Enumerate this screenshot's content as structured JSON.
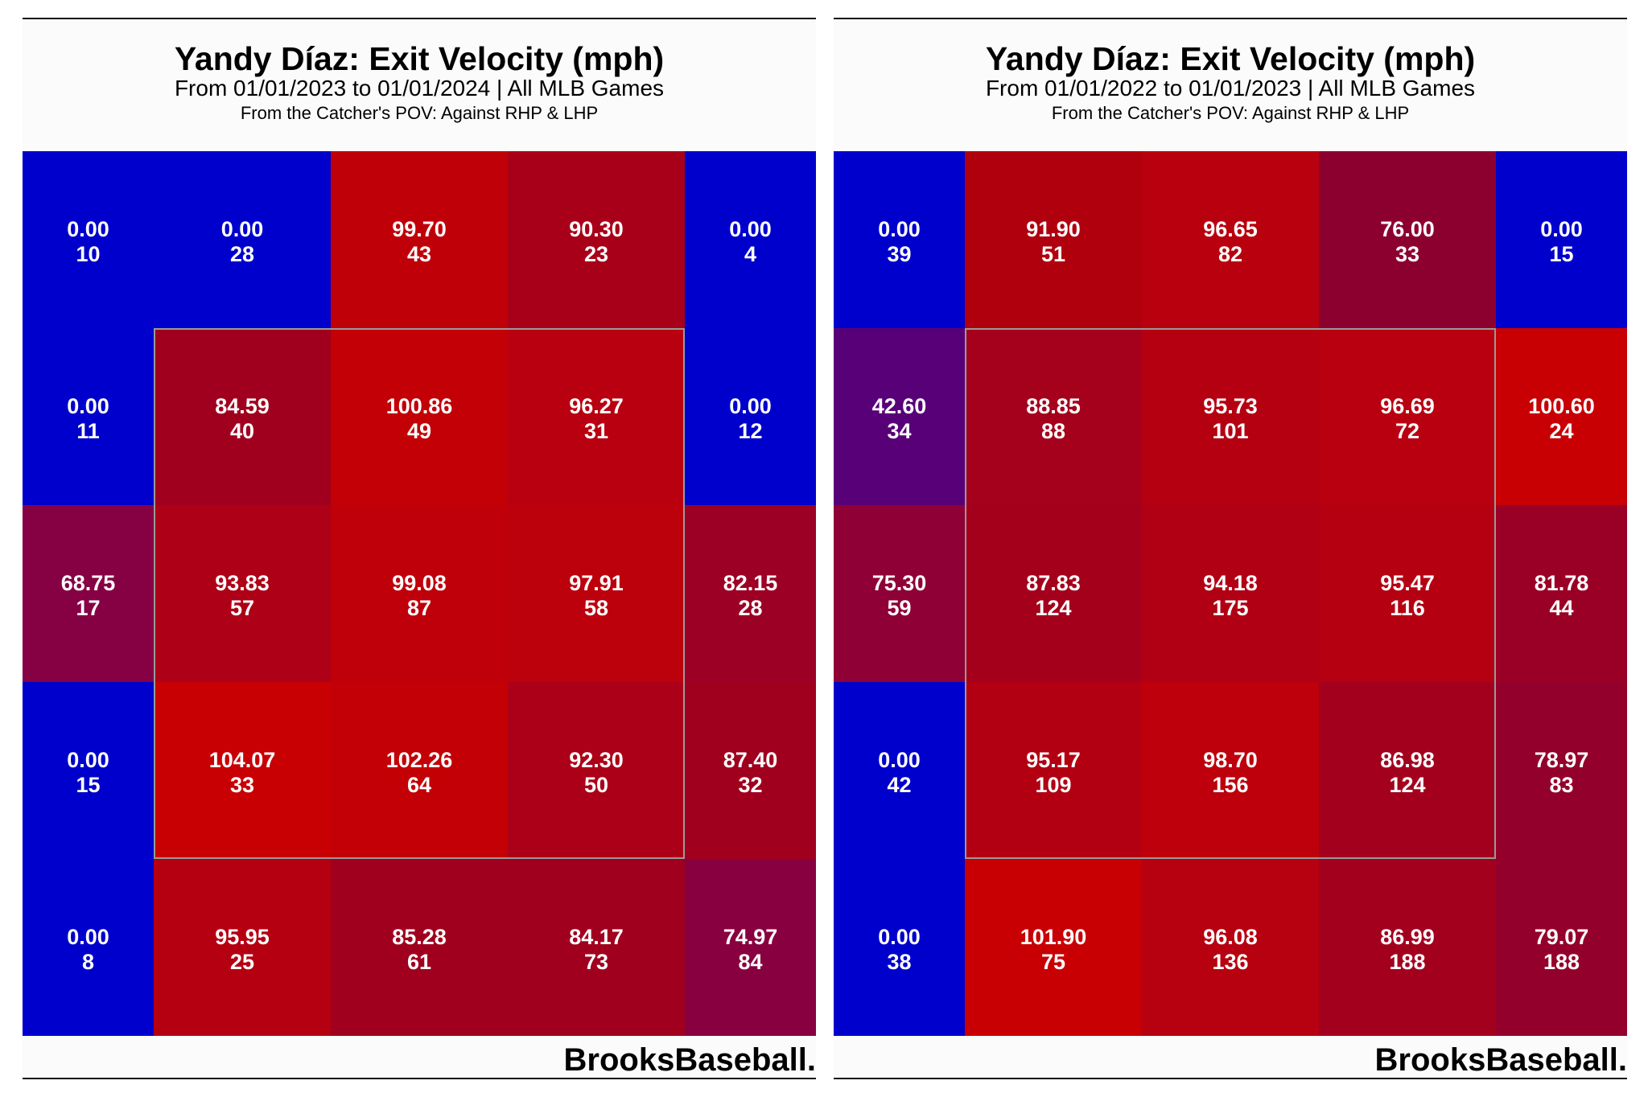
{
  "chart_data": [
    {
      "type": "heatmap",
      "title": "Yandy Díaz: Exit Velocity (mph)",
      "subtitle": "From 01/01/2023 to 01/01/2024 | All MLB Games",
      "note": "From the Catcher's POV:   Against RHP & LHP",
      "brand": "BrooksBaseball.",
      "rows": 5,
      "cols": 5,
      "strike_zone": {
        "row_start": 1,
        "row_end": 3,
        "col_start": 1,
        "col_end": 3
      },
      "cells": [
        [
          {
            "value": "0.00",
            "count": "10",
            "color": "#0000cc"
          },
          {
            "value": "0.00",
            "count": "28",
            "color": "#0000cc"
          },
          {
            "value": "99.70",
            "count": "43",
            "color": "#c00008"
          },
          {
            "value": "90.30",
            "count": "23",
            "color": "#a80018"
          },
          {
            "value": "0.00",
            "count": "4",
            "color": "#0000cc"
          }
        ],
        [
          {
            "value": "0.00",
            "count": "11",
            "color": "#0000cc"
          },
          {
            "value": "84.59",
            "count": "40",
            "color": "#a0001e"
          },
          {
            "value": "100.86",
            "count": "49",
            "color": "#c20006"
          },
          {
            "value": "96.27",
            "count": "31",
            "color": "#b90010"
          },
          {
            "value": "0.00",
            "count": "12",
            "color": "#0000cc"
          }
        ],
        [
          {
            "value": "68.75",
            "count": "17",
            "color": "#860044"
          },
          {
            "value": "93.83",
            "count": "57",
            "color": "#ae0016"
          },
          {
            "value": "99.08",
            "count": "87",
            "color": "#bf000a"
          },
          {
            "value": "97.91",
            "count": "58",
            "color": "#bc000c"
          },
          {
            "value": "82.15",
            "count": "28",
            "color": "#9c0024"
          }
        ],
        [
          {
            "value": "0.00",
            "count": "15",
            "color": "#0000cc"
          },
          {
            "value": "104.07",
            "count": "33",
            "color": "#c80004"
          },
          {
            "value": "102.26",
            "count": "64",
            "color": "#c30006"
          },
          {
            "value": "92.30",
            "count": "50",
            "color": "#ab0018"
          },
          {
            "value": "87.40",
            "count": "32",
            "color": "#a0001e"
          }
        ],
        [
          {
            "value": "0.00",
            "count": "8",
            "color": "#0000cc"
          },
          {
            "value": "95.95",
            "count": "25",
            "color": "#b50012"
          },
          {
            "value": "85.28",
            "count": "61",
            "color": "#a0001e"
          },
          {
            "value": "84.17",
            "count": "73",
            "color": "#a0001e"
          },
          {
            "value": "74.97",
            "count": "84",
            "color": "#880040"
          }
        ]
      ]
    },
    {
      "type": "heatmap",
      "title": "Yandy Díaz: Exit Velocity (mph)",
      "subtitle": "From 01/01/2022 to 01/01/2023 | All MLB Games",
      "note": "From the Catcher's POV:   Against RHP & LHP",
      "brand": "BrooksBaseball.",
      "rows": 5,
      "cols": 5,
      "strike_zone": {
        "row_start": 1,
        "row_end": 3,
        "col_start": 1,
        "col_end": 3
      },
      "cells": [
        [
          {
            "value": "0.00",
            "count": "39",
            "color": "#0000cc"
          },
          {
            "value": "91.90",
            "count": "51",
            "color": "#b0000e"
          },
          {
            "value": "96.65",
            "count": "82",
            "color": "#b9000e"
          },
          {
            "value": "76.00",
            "count": "33",
            "color": "#8c0030"
          },
          {
            "value": "0.00",
            "count": "15",
            "color": "#0000cc"
          }
        ],
        [
          {
            "value": "42.60",
            "count": "34",
            "color": "#570078"
          },
          {
            "value": "88.85",
            "count": "88",
            "color": "#a5001c"
          },
          {
            "value": "95.73",
            "count": "101",
            "color": "#b50012"
          },
          {
            "value": "96.69",
            "count": "72",
            "color": "#b90010"
          },
          {
            "value": "100.60",
            "count": "24",
            "color": "#c80004"
          }
        ],
        [
          {
            "value": "75.30",
            "count": "59",
            "color": "#8e0036"
          },
          {
            "value": "87.83",
            "count": "124",
            "color": "#a4001c"
          },
          {
            "value": "94.18",
            "count": "175",
            "color": "#b10014"
          },
          {
            "value": "95.47",
            "count": "116",
            "color": "#b50012"
          },
          {
            "value": "81.78",
            "count": "44",
            "color": "#9a0026"
          }
        ],
        [
          {
            "value": "0.00",
            "count": "42",
            "color": "#0000cc"
          },
          {
            "value": "95.17",
            "count": "109",
            "color": "#b20012"
          },
          {
            "value": "98.70",
            "count": "156",
            "color": "#bd000c"
          },
          {
            "value": "86.98",
            "count": "124",
            "color": "#a3001e"
          },
          {
            "value": "78.97",
            "count": "83",
            "color": "#94002c"
          }
        ],
        [
          {
            "value": "0.00",
            "count": "38",
            "color": "#0000cc"
          },
          {
            "value": "101.90",
            "count": "75",
            "color": "#c80004"
          },
          {
            "value": "96.08",
            "count": "136",
            "color": "#b70010"
          },
          {
            "value": "86.99",
            "count": "188",
            "color": "#a3001e"
          },
          {
            "value": "79.07",
            "count": "188",
            "color": "#94002c"
          }
        ]
      ]
    }
  ]
}
